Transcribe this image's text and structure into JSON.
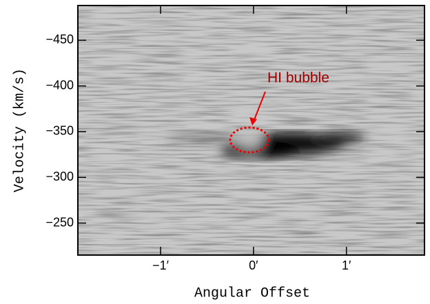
{
  "chart_data": {
    "type": "pv-diagram",
    "xlabel": "Angular Offset",
    "ylabel": "Velocity (km/s)",
    "annotation": "HI bubble",
    "xlim": [
      -1.89,
      1.84
    ],
    "xticks": [
      {
        "value": -1,
        "label": "−1′"
      },
      {
        "value": 0,
        "label": "0′"
      },
      {
        "value": 1,
        "label": "1′"
      }
    ],
    "ylim": [
      -215,
      -488
    ],
    "yticks": [
      {
        "value": -450,
        "label": "−450"
      },
      {
        "value": -400,
        "label": "−400"
      },
      {
        "value": -350,
        "label": "−350"
      },
      {
        "value": -300,
        "label": "−300"
      },
      {
        "value": -250,
        "label": "−250"
      }
    ]
  }
}
